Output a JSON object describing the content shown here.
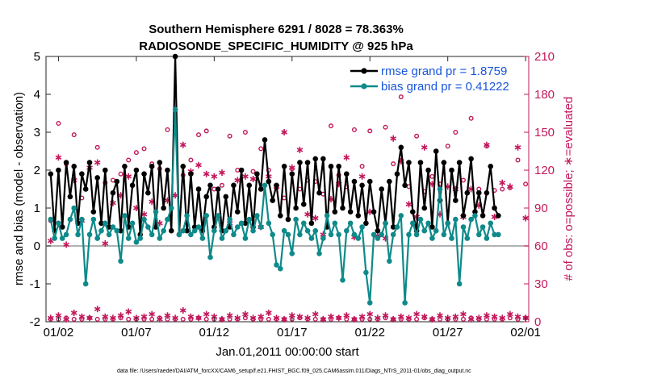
{
  "chart_data": {
    "type": "line",
    "title_line1": "Southern Hemisphere 6291 / 8028 = 78.363%",
    "title_line2": "RADIOSONDE_SPECIFIC_HUMIDITY @ 925 hPa",
    "xlabel": "Jan.01,2011 00:00:00 start",
    "ylabel_left": "rmse and bias (model - observation)",
    "ylabel_right": "# of obs: o=possible; ∗=evaluated",
    "footer": "data file: /Users/raeder/DAI/ATM_forcXX/CAM6_setup/f.e21.FHIST_BGC.f09_025.CAM6assim.011/Diags_NTrS_2011-01/obs_diag_output.nc",
    "x_tick_labels": [
      "01/02",
      "01/07",
      "01/12",
      "01/17",
      "01/22",
      "01/27",
      "02/01"
    ],
    "x_tick_days": [
      1,
      6,
      11,
      16,
      21,
      26,
      31
    ],
    "xlim": [
      0.2,
      31.2
    ],
    "ylim_left": [
      -2,
      5
    ],
    "y_ticks_left": [
      "-2",
      "-1",
      "0",
      "1",
      "2",
      "3",
      "4",
      "5"
    ],
    "ylim_right": [
      0,
      210
    ],
    "y_ticks_right": [
      "0",
      "30",
      "60",
      "90",
      "120",
      "150",
      "180",
      "210"
    ],
    "zero_line": 0,
    "legend": {
      "position": "top-right",
      "rmse_label": "rmse grand pr = 1.8759",
      "bias_label": "bias grand pr = 0.41222"
    },
    "colors": {
      "rmse": "#000000",
      "bias": "#0f8a8a",
      "obs": "#c2185b",
      "zero": "#999999",
      "legend_text": "#1a56db"
    },
    "series": [
      {
        "name": "rmse",
        "x_start": 0.5,
        "x_step": 0.25,
        "values": [
          1.9,
          0.4,
          2.0,
          0.5,
          2.2,
          1.3,
          2.1,
          0.6,
          1.9,
          1.5,
          2.2,
          0.9,
          1.8,
          0.6,
          2.0,
          0.5,
          1.4,
          1.7,
          0.4,
          2.1,
          0.5,
          1.6,
          2.0,
          0.3,
          1.9,
          1.4,
          2.1,
          0.5,
          2.2,
          1.0,
          2.0,
          0.4,
          5.0,
          0.3,
          2.1,
          0.4,
          1.9,
          0.5,
          1.5,
          0.4,
          1.3,
          1.6,
          0.5,
          1.5,
          0.4,
          1.3,
          0.5,
          1.6,
          0.9,
          2.0,
          0.6,
          1.6,
          0.5,
          1.9,
          1.5,
          2.8,
          1.7,
          1.2,
          1.6,
          0.8,
          2.1,
          0.7,
          1.9,
          1.0,
          2.2,
          1.1,
          2.2,
          0.6,
          2.3,
          1.4,
          2.3,
          0.5,
          2.1,
          0.9,
          2.1,
          1.0,
          1.9,
          0.9,
          1.7,
          0.8,
          1.6,
          0.6,
          1.7,
          0.9,
          0.4,
          1.5,
          0.6,
          1.7,
          0.5,
          1.9,
          2.6,
          1.6,
          2.2,
          0.9,
          0.4,
          2.2,
          1.0,
          2.0,
          0.5,
          2.5,
          1.2,
          2.2,
          0.6,
          2.0,
          1.2,
          2.2,
          0.8,
          1.4,
          2.3,
          0.9,
          1.4,
          0.8,
          1.4,
          2.1,
          1.0,
          0.8
        ]
      },
      {
        "name": "bias",
        "x_start": 0.5,
        "x_step": 0.25,
        "values": [
          0.7,
          0.2,
          0.6,
          0.2,
          0.3,
          0.7,
          1.0,
          0.3,
          0.7,
          -1.0,
          0.3,
          0.7,
          0.2,
          0.4,
          0.6,
          0.3,
          0.5,
          0.4,
          -0.4,
          0.8,
          0.2,
          0.6,
          0.1,
          0.2,
          0.7,
          0.5,
          0.3,
          0.9,
          0.2,
          0.4,
          0.7,
          1.0,
          3.6,
          0.3,
          0.4,
          0.8,
          0.3,
          0.4,
          0.5,
          0.2,
          0.8,
          -0.3,
          0.4,
          0.8,
          0.2,
          0.4,
          0.7,
          0.3,
          0.5,
          0.6,
          0.2,
          0.7,
          0.4,
          0.8,
          0.5,
          1.6,
          0.6,
          0.3,
          -0.5,
          -0.6,
          0.4,
          0.3,
          -0.2,
          0.7,
          0.3,
          0.6,
          0.4,
          0.2,
          0.4,
          -0.2,
          0.2,
          0.8,
          0.3,
          0.6,
          0.3,
          -0.9,
          0.4,
          0.6,
          0.3,
          0.2,
          0.5,
          -0.7,
          -1.5,
          0.3,
          0.2,
          0.3,
          0.6,
          -0.4,
          0.3,
          0.5,
          0.8,
          -1.5,
          0.3,
          0.6,
          0.3,
          0.7,
          0.4,
          0.6,
          0.2,
          0.4,
          1.5,
          0.3,
          0.6,
          0.2,
          0.7,
          -1.0,
          0.5,
          0.2,
          0.7,
          0.8,
          0.3,
          0.5,
          0.2,
          0.6,
          0.3,
          0.3
        ]
      },
      {
        "name": "obs_possible",
        "marker": "circle",
        "x_start": 0.5,
        "x_step": 0.5,
        "values": [
          80,
          157,
          125,
          148,
          98,
          126,
          138,
          110,
          112,
          117,
          128,
          134,
          137,
          125,
          121,
          152,
          154,
          116,
          128,
          148,
          151,
          105,
          108,
          147,
          120,
          150,
          119,
          137,
          120,
          106,
          98,
          121,
          105,
          112,
          111,
          101,
          155,
          116,
          107,
          152,
          123,
          151,
          183,
          154,
          125,
          178,
          107,
          147,
          103,
          115,
          109,
          139,
          150,
          112,
          161,
          105,
          139,
          104,
          105,
          106,
          128,
          109
        ]
      },
      {
        "name": "obs_evaluated",
        "marker": "asterisk",
        "x_start": 0.5,
        "x_step": 0.5,
        "values": [
          64,
          130,
          61,
          112,
          80,
          122,
          126,
          62,
          94,
          100,
          115,
          90,
          85,
          95,
          78,
          96,
          100,
          140,
          119,
          124,
          117,
          115,
          118,
          78,
          112,
          115,
          113,
          75,
          115,
          107,
          150,
          122,
          136,
          85,
          82,
          69,
          97,
          109,
          130,
          67,
          115,
          87,
          68,
          66,
          145,
          127,
          93,
          83,
          138,
          109,
          85,
          107,
          105,
          83,
          105,
          92,
          140,
          83,
          110,
          107,
          138,
          82
        ]
      },
      {
        "name": "obs_possible_bottom",
        "marker": "circle",
        "x_start": 0.5,
        "x_step": 0.5,
        "values": [
          2,
          2,
          3,
          2,
          2,
          3,
          2,
          2,
          2,
          3,
          2,
          2,
          2,
          2,
          3,
          2,
          2,
          2,
          2,
          3,
          2,
          2,
          2,
          2,
          2,
          3,
          2,
          2,
          2,
          2,
          2,
          2,
          3,
          2,
          2,
          2,
          2,
          3,
          2,
          2,
          2,
          2,
          2,
          3,
          2,
          2,
          2,
          2,
          3,
          2,
          2,
          2,
          2,
          2,
          3,
          2,
          2,
          2,
          2,
          3,
          2,
          3
        ]
      },
      {
        "name": "obs_evaluated_bottom",
        "marker": "asterisk",
        "x_start": 0.5,
        "x_step": 0.5,
        "values": [
          3,
          5,
          2,
          7,
          4,
          3,
          10,
          4,
          3,
          5,
          8,
          3,
          4,
          6,
          2,
          5,
          3,
          9,
          4,
          3,
          6,
          4,
          2,
          5,
          3,
          6,
          3,
          4,
          7,
          3,
          2,
          5,
          4,
          3,
          6,
          2,
          4,
          3,
          5,
          2,
          4,
          6,
          3,
          5,
          2,
          4,
          3,
          6,
          4,
          2,
          5,
          3,
          4,
          6,
          2,
          3,
          5,
          4,
          3,
          6,
          4,
          3
        ]
      }
    ]
  }
}
